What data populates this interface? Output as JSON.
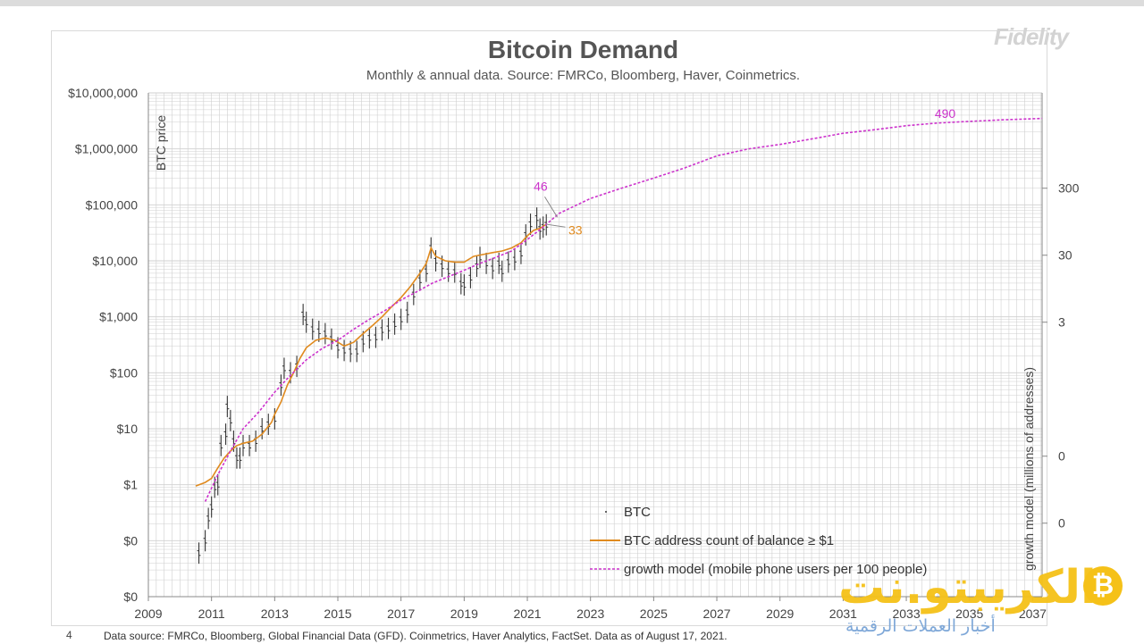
{
  "logo_text": "Fidelity",
  "page_number": "4",
  "footer": "Data source: FMRCo, Bloomberg, Global Financial Data (GFD). Coinmetrics, Haver Analytics, FactSet.  Data as of August 17, 2021.",
  "watermark": {
    "arabic": "الكريبتو.نت",
    "subtitle": "أخبار العملات الرقمية",
    "coin": "₿"
  },
  "colors": {
    "btc": "#333333",
    "address": "#e08a1e",
    "growth": "#cc33cc",
    "grid": "#cfcfcf"
  },
  "chart_data": {
    "type": "line",
    "title": "Bitcoin Demand",
    "subtitle": "Monthly & annual data.  Source: FMRCo, Bloomberg, Haver, Coinmetrics.",
    "ylabel_left": "BTC price",
    "ylabel_right": "growth model (millions of addresses)",
    "x_ticks": [
      "2009",
      "2011",
      "2013",
      "2015",
      "2017",
      "2019",
      "2021",
      "2023",
      "2025",
      "2027",
      "2029",
      "2031",
      "2033",
      "2035",
      "2037"
    ],
    "x_range": [
      2009,
      2037.3
    ],
    "y_left_ticks": [
      "$0",
      "$0",
      "$1",
      "$10",
      "$100",
      "$1,000",
      "$10,000",
      "$100,000",
      "$1,000,000",
      "$10,000,000"
    ],
    "y_right_ticks": [
      "0",
      "0",
      "3",
      "30",
      "300"
    ],
    "legend": [
      "BTC",
      "BTC address count of balance ≥ $1",
      "growth model (mobile phone users per 100 people)"
    ],
    "annotations": {
      "growth_end": "490",
      "growth_now": "46",
      "address_now": "33"
    },
    "series": [
      {
        "name": "BTC",
        "x": [
          2010.6,
          2010.8,
          2010.9,
          2011.0,
          2011.1,
          2011.2,
          2011.3,
          2011.45,
          2011.5,
          2011.6,
          2011.7,
          2011.8,
          2011.9,
          2012.0,
          2012.2,
          2012.4,
          2012.6,
          2012.8,
          2013.0,
          2013.2,
          2013.3,
          2013.5,
          2013.7,
          2013.9,
          2014.0,
          2014.2,
          2014.4,
          2014.6,
          2014.8,
          2015.0,
          2015.2,
          2015.4,
          2015.6,
          2015.8,
          2016.0,
          2016.2,
          2016.4,
          2016.6,
          2016.8,
          2017.0,
          2017.2,
          2017.4,
          2017.6,
          2017.8,
          2017.95,
          2018.1,
          2018.3,
          2018.5,
          2018.7,
          2018.9,
          2019.0,
          2019.2,
          2019.4,
          2019.5,
          2019.7,
          2019.9,
          2020.1,
          2020.2,
          2020.4,
          2020.6,
          2020.8,
          2020.95,
          2021.1,
          2021.3,
          2021.4,
          2021.5,
          2021.6
        ],
        "y": [
          0.06,
          0.1,
          0.25,
          0.4,
          0.9,
          1.0,
          5,
          8,
          25,
          14,
          6,
          3,
          3,
          5,
          5,
          6,
          10,
          12,
          15,
          60,
          120,
          100,
          130,
          1100,
          800,
          600,
          550,
          500,
          400,
          280,
          250,
          240,
          240,
          360,
          420,
          430,
          580,
          620,
          740,
          900,
          1200,
          2500,
          4500,
          6500,
          17000,
          10000,
          8000,
          6500,
          6300,
          3900,
          3700,
          5000,
          8000,
          11500,
          9000,
          7300,
          9000,
          6500,
          9500,
          10500,
          13500,
          29000,
          45000,
          58000,
          37000,
          40000,
          44000
        ]
      },
      {
        "name": "BTC address count of balance ≥ $1",
        "x": [
          2010.5,
          2010.8,
          2011.0,
          2011.2,
          2011.4,
          2011.6,
          2011.8,
          2012.0,
          2012.3,
          2012.6,
          2012.9,
          2013.0,
          2013.2,
          2013.4,
          2013.6,
          2013.8,
          2014.0,
          2014.3,
          2014.6,
          2014.9,
          2015.2,
          2015.5,
          2015.8,
          2016.1,
          2016.4,
          2016.7,
          2017.0,
          2017.3,
          2017.6,
          2017.8,
          2017.95,
          2018.1,
          2018.4,
          2018.7,
          2019.0,
          2019.3,
          2019.6,
          2019.9,
          2020.2,
          2020.5,
          2020.8,
          2021.0,
          2021.2,
          2021.4,
          2021.6
        ],
        "y": [
          0.95,
          1.1,
          1.3,
          2,
          3,
          4,
          5,
          5.5,
          6,
          8,
          13,
          18,
          30,
          60,
          100,
          180,
          280,
          380,
          420,
          380,
          300,
          350,
          500,
          700,
          1000,
          1500,
          2200,
          3500,
          6000,
          9000,
          17000,
          12000,
          10000,
          9500,
          9500,
          12000,
          13000,
          14000,
          15000,
          17000,
          21000,
          28000,
          35000,
          38000,
          45000
        ]
      },
      {
        "name": "growth model (mobile phone users per 100 people)",
        "x": [
          2010.8,
          2011.2,
          2011.6,
          2012.0,
          2012.5,
          2013.0,
          2013.5,
          2014.0,
          2014.5,
          2015.0,
          2015.5,
          2016.0,
          2016.5,
          2017.0,
          2017.5,
          2018.0,
          2018.5,
          2019.0,
          2019.5,
          2020.0,
          2020.5,
          2021.0,
          2021.5,
          2022.0,
          2023.0,
          2024.0,
          2025.0,
          2026.0,
          2027.0,
          2028.0,
          2029.0,
          2030.0,
          2031.0,
          2032.0,
          2033.0,
          2034.0,
          2035.0,
          2036.0,
          2037.3
        ],
        "y": [
          0.5,
          1.5,
          4,
          10,
          20,
          45,
          90,
          170,
          270,
          380,
          600,
          900,
          1300,
          2000,
          2800,
          4000,
          5200,
          6800,
          9000,
          11500,
          15000,
          24000,
          40000,
          70000,
          130000,
          200000,
          300000,
          460000,
          750000,
          1000000,
          1200000,
          1500000,
          1900000,
          2200000,
          2600000,
          2900000,
          3100000,
          3300000,
          3500000
        ]
      }
    ]
  }
}
